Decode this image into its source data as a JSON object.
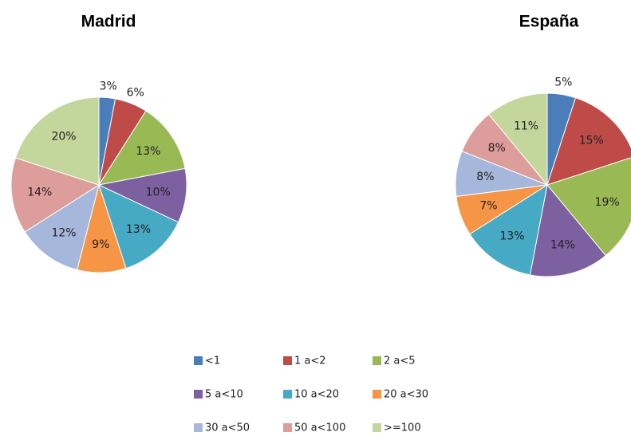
{
  "chart_data": [
    {
      "type": "pie",
      "title": "Madrid",
      "values": [
        3,
        6,
        13,
        10,
        13,
        9,
        12,
        14,
        20
      ],
      "value_labels": [
        "3%",
        "6%",
        "13%",
        "10%",
        "13%",
        "9%",
        "12%",
        "14%",
        "20%"
      ]
    },
    {
      "type": "pie",
      "title": "España",
      "values": [
        5,
        15,
        19,
        14,
        13,
        7,
        8,
        8,
        11
      ],
      "value_labels": [
        "5%",
        "15%",
        "19%",
        "14%",
        "13%",
        "7%",
        "8%",
        "8%",
        "11%"
      ]
    }
  ],
  "legend": {
    "categories": [
      "<1",
      "1 a<2",
      "2 a<5",
      "5 a<10",
      "10 a<20",
      "20 a<30",
      "30 a<50",
      "50 a<100",
      ">=100"
    ],
    "colors": [
      "#4a7ebb",
      "#be4b48",
      "#98b954",
      "#7d60a0",
      "#46aac5",
      "#f69545",
      "#a5b8db",
      "#dc9d9b",
      "#c3d69b"
    ]
  }
}
